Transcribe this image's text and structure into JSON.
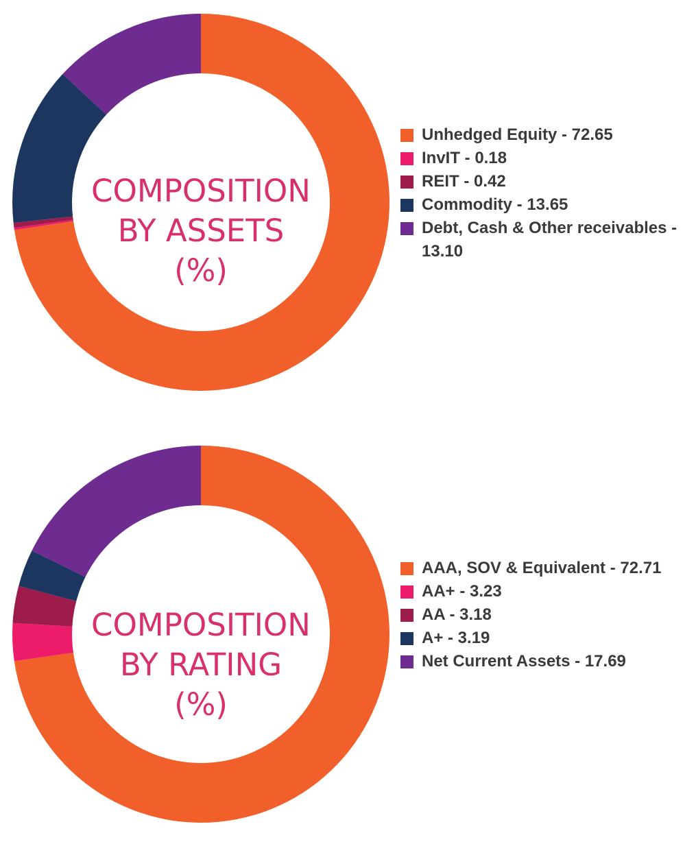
{
  "colors": {
    "orange": "#f15f2a",
    "pink": "#ec1c6b",
    "maroon": "#9d1c4c",
    "navy": "#1c3660",
    "purple": "#6f2c90",
    "center_text": "#d8306c",
    "legend_text": "#3a3a3a"
  },
  "chart_data": [
    {
      "type": "pie",
      "title": "",
      "center_label": [
        "COMPOSITION",
        "BY ASSETS",
        "(%)"
      ],
      "slices": [
        {
          "name": "Unhedged Equity",
          "value": 72.65,
          "color": "#f15f2a",
          "label": "Unhedged Equity - 72.65"
        },
        {
          "name": "InvIT",
          "value": 0.18,
          "color": "#ec1c6b",
          "label": "InvIT - 0.18"
        },
        {
          "name": "REIT",
          "value": 0.42,
          "color": "#9d1c4c",
          "label": "REIT - 0.42"
        },
        {
          "name": "Commodity",
          "value": 13.65,
          "color": "#1c3660",
          "label": "Commodity - 13.65"
        },
        {
          "name": "Debt, Cash & Other receivables",
          "value": 13.1,
          "color": "#6f2c90",
          "label": "Debt, Cash & Other receivables - 13.10"
        }
      ],
      "legend_position": "right"
    },
    {
      "type": "pie",
      "title": "",
      "center_label": [
        "COMPOSITION",
        "BY RATING",
        "(%)"
      ],
      "slices": [
        {
          "name": "AAA, SOV & Equivalent",
          "value": 72.71,
          "color": "#f15f2a",
          "label": "AAA, SOV & Equivalent - 72.71"
        },
        {
          "name": "AA+",
          "value": 3.23,
          "color": "#ec1c6b",
          "label": "AA+ - 3.23"
        },
        {
          "name": "AA",
          "value": 3.18,
          "color": "#9d1c4c",
          "label": "AA - 3.18"
        },
        {
          "name": "A+",
          "value": 3.19,
          "color": "#1c3660",
          "label": "A+ - 3.19"
        },
        {
          "name": "Net Current Assets",
          "value": 17.69,
          "color": "#6f2c90",
          "label": "Net Current Assets - 17.69"
        }
      ],
      "legend_position": "right"
    }
  ]
}
